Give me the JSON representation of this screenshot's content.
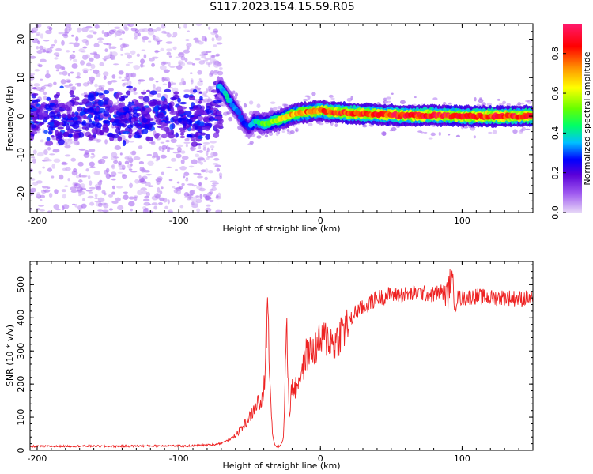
{
  "title": "S117.2023.154.15.59.R05",
  "chart_data": [
    {
      "type": "heatmap",
      "title": "S117.2023.154.15.59.R05",
      "xlabel": "Height of straight line (km)",
      "ylabel": "Frequency (Hz)",
      "xlim": [
        -205,
        150
      ],
      "ylim": [
        -25,
        24
      ],
      "xticks": [
        -200,
        -100,
        0,
        100
      ],
      "yticks": [
        -20,
        -10,
        0,
        10,
        20
      ],
      "grid": false,
      "colorbar": {
        "label": "Normalized spectral amplitude",
        "range": [
          0,
          0.95
        ],
        "ticks": [
          0.0,
          0.2,
          0.4,
          0.6,
          0.8
        ],
        "colors": [
          "#e6d6f7",
          "#a05bf0",
          "#5a00d8",
          "#0000ff",
          "#00c0ff",
          "#00ff66",
          "#66ff00",
          "#ffff00",
          "#ff9900",
          "#ff0000",
          "#ff1a6e"
        ]
      },
      "ridge": {
        "x": [
          -70,
          -66,
          -62,
          -58,
          -55,
          -52,
          -50,
          -47,
          -44,
          -40,
          -35,
          -30,
          -25,
          -20,
          -15,
          -10,
          -5,
          0,
          5,
          10,
          20,
          40,
          60,
          80,
          100,
          120,
          150
        ],
        "y": [
          7.5,
          5,
          3,
          1,
          -1,
          -2.5,
          -3,
          -1.5,
          -1.5,
          -2,
          -1.5,
          -1,
          -0.5,
          0.5,
          0.8,
          1,
          1.2,
          1.5,
          1.2,
          1,
          0.8,
          0.5,
          0.2,
          0.2,
          0,
          0,
          0
        ],
        "amplitude": [
          0.35,
          0.4,
          0.35,
          0.3,
          0.3,
          0.3,
          0.3,
          0.4,
          0.45,
          0.5,
          0.55,
          0.6,
          0.65,
          0.7,
          0.72,
          0.75,
          0.75,
          0.8,
          0.8,
          0.82,
          0.85,
          0.85,
          0.85,
          0.86,
          0.86,
          0.86,
          0.86
        ]
      }
    },
    {
      "type": "line",
      "xlabel": "Height of straight line (km)",
      "ylabel": "SNR (10 * v/v)",
      "xlim": [
        -205,
        150
      ],
      "ylim": [
        0,
        570
      ],
      "xticks": [
        -200,
        -100,
        0,
        100
      ],
      "yticks": [
        0,
        100,
        200,
        300,
        400,
        500
      ],
      "grid": false,
      "series": [
        {
          "color": "#ee2222",
          "x": [
            -205,
            -190,
            -170,
            -150,
            -130,
            -110,
            -95,
            -85,
            -75,
            -70,
            -65,
            -60,
            -55,
            -50,
            -47,
            -44,
            -42,
            -40,
            -39,
            -38,
            -37,
            -36,
            -35,
            -34,
            -33,
            -32,
            -30,
            -28,
            -26,
            -25,
            -24,
            -23,
            -22,
            -21,
            -20,
            -18,
            -15,
            -12,
            -10,
            -5,
            0,
            5,
            10,
            15,
            20,
            25,
            30,
            40,
            50,
            60,
            70,
            80,
            85,
            90,
            92,
            95,
            100,
            110,
            120,
            130,
            140,
            150
          ],
          "y": [
            12,
            12,
            13,
            12,
            13,
            14,
            13,
            15,
            17,
            22,
            30,
            45,
            70,
            100,
            120,
            150,
            130,
            180,
            250,
            380,
            440,
            280,
            150,
            60,
            30,
            15,
            10,
            15,
            40,
            200,
            380,
            250,
            110,
            150,
            200,
            180,
            220,
            250,
            290,
            300,
            330,
            340,
            320,
            360,
            380,
            420,
            430,
            460,
            470,
            470,
            475,
            470,
            480,
            470,
            520,
            460,
            460,
            465,
            460,
            462,
            458,
            460
          ]
        }
      ]
    }
  ]
}
